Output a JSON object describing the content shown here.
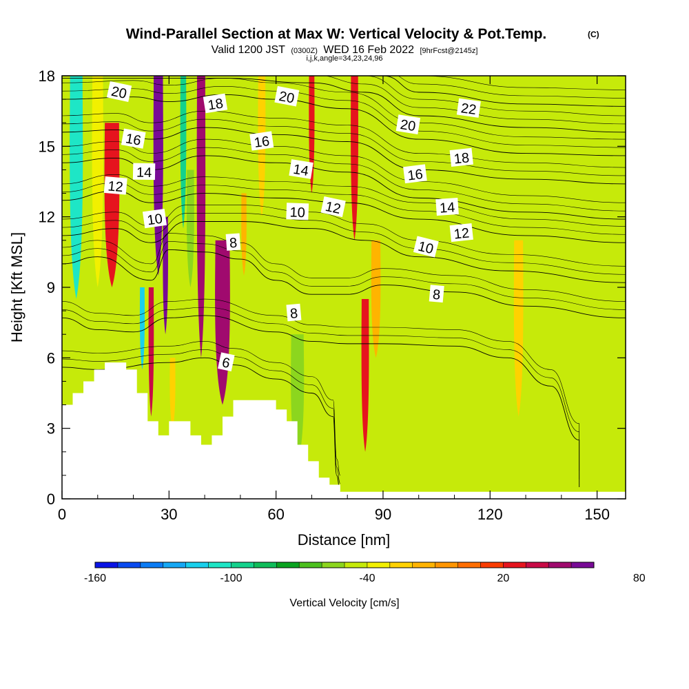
{
  "header": {
    "title": "Wind-Parallel Section at Max W: Vertical Velocity & Pot.Temp.",
    "copyright": "(C)",
    "subtitle_valid": "Valid 1200 JST",
    "subtitle_utc": "(0300Z)",
    "subtitle_date": "WED 16 Feb 2022",
    "subtitle_fcst": "[9hrFcst@2145z]",
    "subtitle_ijk": "i,j,k,angle=34,23,24,96"
  },
  "chart_data": {
    "type": "heatmap",
    "xlabel": "Distance [nm]",
    "ylabel": "Height [Kft MSL]",
    "xlim": [
      0,
      158
    ],
    "ylim": [
      0,
      18
    ],
    "xticks": [
      0,
      30,
      60,
      90,
      120,
      150
    ],
    "yticks": [
      0,
      3,
      6,
      9,
      12,
      15,
      18
    ],
    "colorbar": {
      "label": "Vertical Velocity [cm/s]",
      "bounds": [
        -160,
        150
      ],
      "step": 10,
      "tick_values": [
        -160,
        -100,
        -40,
        20,
        80,
        140
      ],
      "colors": [
        "#0a14e6",
        "#0a4bf0",
        "#0b7cf5",
        "#16a8f5",
        "#19d0ec",
        "#1ee6c6",
        "#14d28c",
        "#0fbd5a",
        "#0aa320",
        "#4cc01e",
        "#8cd61e",
        "#c6ea0a",
        "#f2f000",
        "#ffd200",
        "#ffb400",
        "#ff9600",
        "#ff6e00",
        "#fa3c00",
        "#e6141e",
        "#c80a46",
        "#a00a6e",
        "#780a96"
      ]
    },
    "wind_columns": [
      {
        "x": 4,
        "w": 3.5,
        "w_cm_s": -110,
        "bottom": 8.5,
        "top": 18
      },
      {
        "x": 10,
        "w": 3,
        "w_cm_s": -40,
        "bottom": 9,
        "top": 18
      },
      {
        "x": 14,
        "w": 4,
        "w_cm_s": 20,
        "bottom": 9,
        "top": 16
      },
      {
        "x": 21,
        "w": 2.5,
        "w_cm_s": -50,
        "bottom": 4.5,
        "top": 18
      },
      {
        "x": 22.5,
        "w": 1.3,
        "w_cm_s": -120,
        "bottom": 5.5,
        "top": 9
      },
      {
        "x": 25,
        "w": 1.4,
        "w_cm_s": 30,
        "bottom": 3.5,
        "top": 9
      },
      {
        "x": 27,
        "w": 2.6,
        "w_cm_s": 90,
        "bottom": 9.5,
        "top": 18
      },
      {
        "x": 29,
        "w": 1.4,
        "w_cm_s": 60,
        "bottom": 7,
        "top": 12
      },
      {
        "x": 31,
        "w": 1.5,
        "w_cm_s": -30,
        "bottom": 3,
        "top": 6
      },
      {
        "x": 34,
        "w": 1.6,
        "w_cm_s": -100,
        "bottom": 11.5,
        "top": 18
      },
      {
        "x": 36,
        "w": 2,
        "w_cm_s": -60,
        "bottom": 9,
        "top": 14
      },
      {
        "x": 39,
        "w": 2.3,
        "w_cm_s": 40,
        "bottom": 6,
        "top": 18
      },
      {
        "x": 45,
        "w": 4,
        "w_cm_s": 40,
        "bottom": 4,
        "top": 11
      },
      {
        "x": 51,
        "w": 1.4,
        "w_cm_s": -20,
        "bottom": 9.5,
        "top": 13
      },
      {
        "x": 56,
        "w": 2,
        "w_cm_s": -30,
        "bottom": 12,
        "top": 18
      },
      {
        "x": 65,
        "w": 2,
        "w_cm_s": -45,
        "bottom": 12,
        "top": 18
      },
      {
        "x": 66,
        "w": 3.5,
        "w_cm_s": -55,
        "bottom": 1.5,
        "top": 7
      },
      {
        "x": 70,
        "w": 1.5,
        "w_cm_s": 25,
        "bottom": 13,
        "top": 18
      },
      {
        "x": 78,
        "w": 2.2,
        "w_cm_s": -45,
        "bottom": 7.5,
        "top": 18
      },
      {
        "x": 82,
        "w": 2,
        "w_cm_s": 20,
        "bottom": 11,
        "top": 18
      },
      {
        "x": 85,
        "w": 2,
        "w_cm_s": 20,
        "bottom": 2,
        "top": 8.5
      },
      {
        "x": 88,
        "w": 2.5,
        "w_cm_s": -20,
        "bottom": 6,
        "top": 11
      },
      {
        "x": 94,
        "w": 2,
        "w_cm_s": -50,
        "bottom": 10,
        "top": 18
      },
      {
        "x": 128,
        "w": 2.5,
        "w_cm_s": -30,
        "bottom": 3.5,
        "top": 11
      }
    ],
    "terrain": [
      [
        0,
        4
      ],
      [
        3,
        4
      ],
      [
        3,
        4.5
      ],
      [
        6,
        4.5
      ],
      [
        6,
        5
      ],
      [
        9,
        5
      ],
      [
        9,
        5.5
      ],
      [
        12,
        5.5
      ],
      [
        12,
        5.8
      ],
      [
        18,
        5.8
      ],
      [
        18,
        5.5
      ],
      [
        21,
        5.5
      ],
      [
        21,
        4.5
      ],
      [
        24,
        4.5
      ],
      [
        24,
        3.3
      ],
      [
        27,
        3.3
      ],
      [
        27,
        2.7
      ],
      [
        30,
        2.7
      ],
      [
        30,
        3.3
      ],
      [
        36,
        3.3
      ],
      [
        36,
        2.7
      ],
      [
        39,
        2.7
      ],
      [
        39,
        2.3
      ],
      [
        42,
        2.3
      ],
      [
        42,
        2.7
      ],
      [
        45,
        2.7
      ],
      [
        45,
        3.5
      ],
      [
        48,
        3.5
      ],
      [
        48,
        4.2
      ],
      [
        60,
        4.2
      ],
      [
        60,
        3.8
      ],
      [
        63,
        3.8
      ],
      [
        63,
        3.3
      ],
      [
        66,
        3.3
      ],
      [
        66,
        2.3
      ],
      [
        69,
        2.3
      ],
      [
        69,
        1.6
      ],
      [
        72,
        1.6
      ],
      [
        72,
        0.9
      ],
      [
        75,
        0.9
      ],
      [
        75,
        0.6
      ],
      [
        78,
        0.6
      ],
      [
        78,
        0.3
      ],
      [
        158,
        0.3
      ]
    ],
    "theta_contours": [
      {
        "level": 6,
        "label": "6",
        "label_x": 46,
        "label_y": 5.8,
        "points": [
          [
            0,
            5.6
          ],
          [
            10,
            5.5
          ],
          [
            30,
            5.8
          ],
          [
            40,
            6.0
          ],
          [
            48,
            5.7
          ],
          [
            60,
            5.1
          ],
          [
            70,
            4.5
          ],
          [
            76,
            3.5
          ],
          [
            77,
            1.0
          ],
          [
            78,
            0.3
          ]
        ]
      },
      {
        "level": 8,
        "label": "8",
        "label_x": 65,
        "label_y": 7.9,
        "label2": "8",
        "label2_x": 48,
        "label2_y": 10.9,
        "label3": "8",
        "label3_x": 105,
        "label3_y": 8.7,
        "points": [
          [
            0,
            7.7
          ],
          [
            10,
            7.2
          ],
          [
            20,
            7.1
          ],
          [
            30,
            7.7
          ],
          [
            40,
            7.8
          ],
          [
            60,
            7.1
          ],
          [
            70,
            6.7
          ],
          [
            80,
            6.6
          ],
          [
            90,
            6.6
          ],
          [
            110,
            6.5
          ],
          [
            125,
            6.0
          ],
          [
            137,
            4.8
          ],
          [
            145,
            2.5
          ],
          [
            145,
            0.5
          ]
        ]
      },
      {
        "level": 8.5,
        "label": "",
        "points": [
          [
            0,
            10.0
          ],
          [
            10,
            10.3
          ],
          [
            25,
            9.3
          ],
          [
            30,
            10.6
          ],
          [
            40,
            10.5
          ],
          [
            50,
            10.2
          ],
          [
            60,
            9.3
          ],
          [
            70,
            8.7
          ],
          [
            80,
            8.7
          ],
          [
            90,
            9.1
          ],
          [
            110,
            8.8
          ],
          [
            130,
            8.2
          ],
          [
            158,
            7.7
          ]
        ]
      },
      {
        "level": 10,
        "label": "10",
        "label_x": 66,
        "label_y": 12.2,
        "label2": "10",
        "label2_x": 102,
        "label2_y": 10.7,
        "label3": "10",
        "label3_x": 26,
        "label3_y": 11.9,
        "points": [
          [
            0,
            11.2
          ],
          [
            15,
            11.5
          ],
          [
            25,
            10.9
          ],
          [
            35,
            11.8
          ],
          [
            50,
            11.8
          ],
          [
            70,
            11.5
          ],
          [
            85,
            11.0
          ],
          [
            100,
            10.3
          ],
          [
            125,
            9.7
          ],
          [
            158,
            9.2
          ]
        ]
      },
      {
        "level": 12,
        "label": "12",
        "label_x": 112,
        "label_y": 11.3,
        "label2": "12",
        "label2_x": 76,
        "label2_y": 12.4,
        "label3": "12",
        "label3_x": 15,
        "label3_y": 13.3,
        "points": [
          [
            0,
            12.7
          ],
          [
            15,
            13.1
          ],
          [
            25,
            12.6
          ],
          [
            40,
            13.0
          ],
          [
            60,
            12.8
          ],
          [
            80,
            12.6
          ],
          [
            100,
            11.9
          ],
          [
            130,
            11.2
          ],
          [
            158,
            10.9
          ]
        ]
      },
      {
        "level": 14,
        "label": "14",
        "label_x": 108,
        "label_y": 12.4,
        "label2": "14",
        "label2_x": 67,
        "label2_y": 14.0,
        "label3": "14",
        "label3_x": 23,
        "label3_y": 13.9,
        "points": [
          [
            0,
            14.3
          ],
          [
            15,
            14.5
          ],
          [
            25,
            14.0
          ],
          [
            40,
            14.6
          ],
          [
            60,
            14.3
          ],
          [
            80,
            13.9
          ],
          [
            100,
            12.8
          ],
          [
            130,
            12.2
          ],
          [
            158,
            11.9
          ]
        ]
      },
      {
        "level": 16,
        "label": "16",
        "label_x": 99,
        "label_y": 13.8,
        "label2": "16",
        "label2_x": 56,
        "label2_y": 15.2,
        "label3": "16",
        "label3_x": 20,
        "label3_y": 15.3,
        "points": [
          [
            0,
            15.6
          ],
          [
            15,
            15.7
          ],
          [
            25,
            15.3
          ],
          [
            40,
            15.8
          ],
          [
            60,
            15.5
          ],
          [
            80,
            15.2
          ],
          [
            100,
            14.0
          ],
          [
            130,
            13.6
          ],
          [
            158,
            13.4
          ]
        ]
      },
      {
        "level": 18,
        "label": "18",
        "label_x": 112,
        "label_y": 14.5,
        "label2": "18",
        "label2_x": 43,
        "label2_y": 16.8,
        "points": [
          [
            0,
            17.0
          ],
          [
            20,
            17.1
          ],
          [
            30,
            16.9
          ],
          [
            45,
            17.2
          ],
          [
            60,
            17.0
          ],
          [
            80,
            16.6
          ],
          [
            100,
            15.3
          ],
          [
            130,
            14.7
          ],
          [
            158,
            14.6
          ]
        ]
      },
      {
        "level": 20,
        "label": "20",
        "label_x": 97,
        "label_y": 15.9,
        "label2": "20",
        "label2_x": 63,
        "label2_y": 17.1,
        "label3": "20",
        "label3_x": 16,
        "label3_y": 17.3,
        "points": [
          [
            0,
            17.9
          ],
          [
            20,
            17.9
          ],
          [
            45,
            17.9
          ],
          [
            70,
            17.7
          ],
          [
            85,
            17.3
          ],
          [
            100,
            16.3
          ],
          [
            130,
            15.8
          ],
          [
            158,
            15.6
          ]
        ]
      },
      {
        "level": 22,
        "label": "22",
        "label_x": 114,
        "label_y": 16.6,
        "points": [
          [
            90,
            18.0
          ],
          [
            100,
            17.3
          ],
          [
            130,
            16.8
          ],
          [
            158,
            16.7
          ]
        ]
      }
    ]
  }
}
